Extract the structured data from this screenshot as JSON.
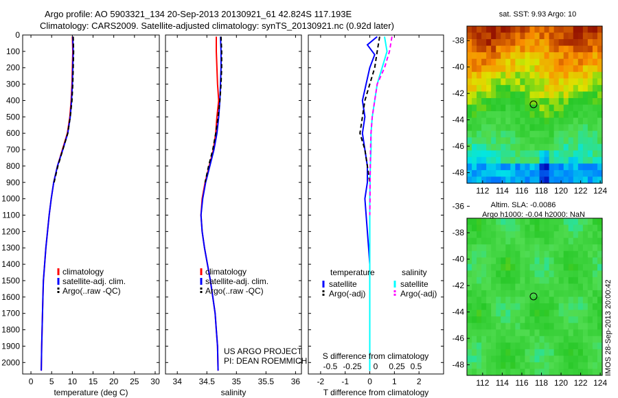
{
  "header": {
    "line1": "Argo profile: AO 5903321_134 20-Sep-2013 20130921_61 42.824S 117.193E",
    "line2": "Climatology: CARS2009. Satellite-adjusted climatology: synTS_20130921.nc (0.92d later)"
  },
  "side_note": "IMOS 28-Sep-2013 20:00:42",
  "credit": {
    "line1": "US ARGO PROJECT",
    "line2": "PI: DEAN ROEMMICH"
  },
  "colors": {
    "climatology": "#ff0000",
    "satellite": "#0000ff",
    "argo": "#000000",
    "sal_satellite": "#00ffff",
    "sal_argo": "#ff00ff"
  },
  "chart_data": [
    {
      "type": "line",
      "xlabel": "temperature (deg C)",
      "xlim": [
        -2,
        31
      ],
      "ylim": [
        0,
        2070
      ],
      "y_reversed": true,
      "x_ticks": [
        0,
        5,
        10,
        15,
        20,
        25,
        30
      ],
      "y_ticks": [
        0,
        100,
        200,
        300,
        400,
        500,
        600,
        700,
        800,
        900,
        1000,
        1100,
        1200,
        1300,
        1400,
        1500,
        1600,
        1700,
        1800,
        1900,
        2000
      ],
      "legend": [
        "climatology",
        "satellite-adj. clim.",
        "Argo(..raw -QC)"
      ],
      "series": [
        {
          "name": "climatology",
          "color": "#ff0000",
          "dash": false,
          "x": [
            10.0,
            10.1,
            10.0,
            9.9,
            9.7,
            9.4,
            8.8,
            7.6,
            6.4,
            5.5,
            4.9,
            4.4,
            4.0,
            3.6,
            3.3,
            3.0,
            2.9,
            2.8,
            2.7,
            2.6,
            2.5
          ],
          "y": [
            10,
            100,
            200,
            300,
            400,
            500,
            600,
            700,
            800,
            900,
            1000,
            1100,
            1200,
            1300,
            1400,
            1500,
            1600,
            1700,
            1800,
            1900,
            2050
          ]
        },
        {
          "name": "satellite-adj. clim.",
          "color": "#0000ff",
          "dash": false,
          "x": [
            10.1,
            10.2,
            10.1,
            10.0,
            9.8,
            9.5,
            8.9,
            7.7,
            6.4,
            5.5,
            4.9,
            4.4,
            4.0,
            3.6,
            3.3,
            3.0,
            2.9,
            2.8,
            2.7,
            2.6,
            2.5
          ],
          "y": [
            10,
            100,
            200,
            300,
            400,
            500,
            600,
            700,
            800,
            900,
            1000,
            1100,
            1200,
            1300,
            1400,
            1500,
            1600,
            1700,
            1800,
            1900,
            2050
          ]
        },
        {
          "name": "Argo(..raw -QC)",
          "color": "#000000",
          "dash": true,
          "x": [
            10.2,
            10.3,
            10.2,
            10.1,
            9.9,
            9.5,
            8.9,
            7.7,
            6.5,
            5.6
          ],
          "y": [
            10,
            100,
            200,
            300,
            400,
            500,
            600,
            700,
            800,
            900
          ]
        }
      ]
    },
    {
      "type": "line",
      "xlabel": "salinity",
      "xlim": [
        33.8,
        36.1
      ],
      "ylim": [
        0,
        2070
      ],
      "y_reversed": true,
      "x_ticks": [
        34,
        34.5,
        35,
        35.5,
        36
      ],
      "legend": [
        "climatology",
        "satellite-adj. clim.",
        "Argo(..raw -QC)"
      ],
      "series": [
        {
          "name": "climatology",
          "color": "#ff0000",
          "dash": false,
          "x": [
            34.66,
            34.66,
            34.67,
            34.68,
            34.7,
            34.67,
            34.65,
            34.61,
            34.54,
            34.47,
            34.42,
            34.4,
            34.42,
            34.46,
            34.51,
            34.56,
            34.6,
            34.64,
            34.66,
            34.68,
            34.69
          ],
          "y": [
            10,
            100,
            200,
            300,
            400,
            500,
            600,
            700,
            800,
            900,
            1000,
            1100,
            1200,
            1300,
            1400,
            1500,
            1600,
            1700,
            1800,
            1900,
            2050
          ]
        },
        {
          "name": "satellite-adj. clim.",
          "color": "#0000ff",
          "dash": false,
          "x": [
            34.73,
            34.74,
            34.74,
            34.73,
            34.72,
            34.7,
            34.67,
            34.62,
            34.55,
            34.48,
            34.43,
            34.4,
            34.42,
            34.46,
            34.51,
            34.56,
            34.6,
            34.64,
            34.66,
            34.68,
            34.69
          ],
          "y": [
            10,
            100,
            200,
            300,
            400,
            500,
            600,
            700,
            800,
            900,
            1000,
            1100,
            1200,
            1300,
            1400,
            1500,
            1600,
            1700,
            1800,
            1900,
            2050
          ]
        },
        {
          "name": "Argo(..raw -QC)",
          "color": "#000000",
          "dash": true,
          "x": [
            34.74,
            34.75,
            34.75,
            34.74,
            34.72,
            34.69,
            34.65,
            34.6,
            34.53,
            34.47
          ],
          "y": [
            10,
            100,
            200,
            300,
            400,
            500,
            600,
            700,
            800,
            900
          ]
        }
      ]
    },
    {
      "type": "line",
      "xlabel": "T difference from climatology",
      "xlabel_top": "S difference from climatology",
      "xlim": [
        -2.5,
        3
      ],
      "ylim": [
        0,
        2070
      ],
      "y_reversed": true,
      "x_ticks": [
        -2,
        -1,
        0,
        1,
        2
      ],
      "x_ticks_top": [
        -0.5,
        -0.25,
        0,
        0.25,
        0.5
      ],
      "legend_groups": [
        {
          "title": "temperature",
          "items": [
            "satellite",
            "Argo(-adj)"
          ]
        },
        {
          "title": "salinity",
          "items": [
            "satellite",
            "Argo(-adj)"
          ]
        }
      ],
      "series": [
        {
          "name": "temperature satellite",
          "color": "#0000ff",
          "dash": false,
          "x": [
            0.3,
            -0.1,
            0.2,
            0.0,
            -0.3,
            -0.2,
            -0.3,
            -0.2,
            -0.1,
            -0.1,
            -0.2,
            -0.15,
            -0.1,
            -0.05,
            0,
            0,
            0,
            0,
            0,
            0,
            0
          ],
          "y": [
            10,
            60,
            120,
            200,
            400,
            500,
            600,
            700,
            800,
            900,
            1000,
            1100,
            1200,
            1300,
            1400,
            1500,
            1600,
            1700,
            1800,
            1900,
            2050
          ]
        },
        {
          "name": "temperature Argo(-adj)",
          "color": "#000000",
          "dash": true,
          "x": [
            0.4,
            0.3,
            0.2,
            0.0,
            -0.2,
            -0.3,
            -0.4,
            -0.2,
            -0.1,
            0.0
          ],
          "y": [
            10,
            100,
            200,
            300,
            400,
            500,
            600,
            700,
            800,
            900
          ]
        },
        {
          "name": "salinity satellite",
          "color": "#00ffff",
          "dash": false,
          "x": [
            0.6,
            0.7,
            0.5,
            0.3,
            0.2,
            0.1,
            0.05,
            0.05,
            0.02,
            0.01,
            0,
            0,
            0,
            0,
            0,
            0,
            0,
            0,
            0,
            0,
            0
          ],
          "y": [
            10,
            100,
            200,
            300,
            400,
            500,
            600,
            700,
            800,
            900,
            1000,
            1100,
            1200,
            1300,
            1400,
            1500,
            1600,
            1700,
            1800,
            1900,
            2050
          ]
        },
        {
          "name": "salinity Argo(-adj)",
          "color": "#ff00ff",
          "dash": true,
          "x": [
            0.9,
            0.8,
            0.6,
            0.3,
            0.2,
            0.1,
            0.05,
            0.03,
            0.02,
            0.01,
            0.01,
            0.0
          ],
          "y": [
            10,
            100,
            200,
            300,
            400,
            500,
            600,
            700,
            800,
            900,
            1000,
            1100
          ]
        }
      ]
    },
    {
      "type": "heatmap",
      "title": "sat. SST: 9.93 Argo: 10",
      "xlim": [
        110.4,
        124.2
      ],
      "ylim": [
        -48.8,
        -36.9
      ],
      "x_ticks": [
        112,
        114,
        116,
        118,
        120,
        122,
        124
      ],
      "y_ticks": [
        -38,
        -40,
        -42,
        -44,
        -46,
        -48
      ],
      "marker": {
        "lon": 117.193,
        "lat": -42.824
      }
    },
    {
      "type": "heatmap",
      "title": "Altim. SLA: -0.0086",
      "subtitle": "Argo h1000: -0.04 h2000: NaN",
      "xlim": [
        110.4,
        124.2
      ],
      "ylim": [
        -48.8,
        -36.9
      ],
      "x_ticks": [
        112,
        114,
        116,
        118,
        120,
        122,
        124
      ],
      "y_ticks": [
        -36,
        -38,
        -40,
        -42,
        -44,
        -46,
        -48
      ],
      "marker": {
        "lon": 117.193,
        "lat": -42.824
      }
    }
  ]
}
